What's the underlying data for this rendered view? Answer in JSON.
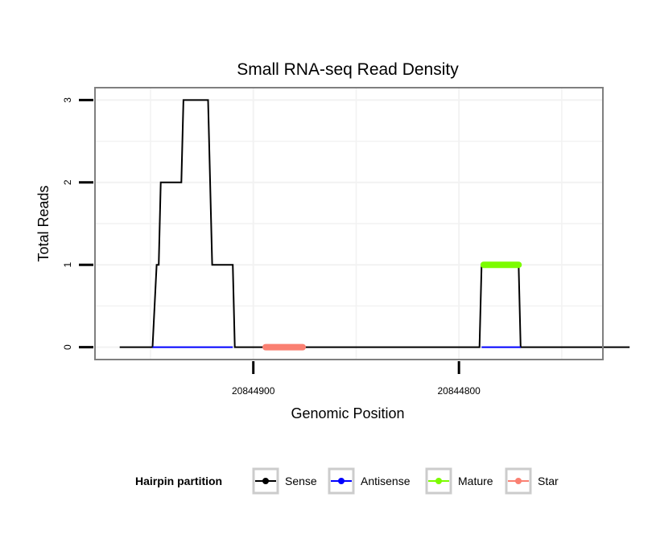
{
  "chart_data": {
    "type": "line",
    "title": "Small RNA-seq Read Density",
    "xlabel": "Genomic Position",
    "ylabel": "Total Reads",
    "xlim": [
      20844977,
      20844730
    ],
    "ylim": [
      -0.15,
      3.15
    ],
    "x_reversed": true,
    "grid": true,
    "x_ticks": [
      20844900,
      20844800
    ],
    "x_tick_labels": [
      "20844900",
      "20844800"
    ],
    "y_ticks": [
      0,
      1,
      2,
      3
    ],
    "y_tick_labels": [
      "0",
      "1",
      "2",
      "3"
    ],
    "series": [
      {
        "name": "Sense",
        "color": "#000000",
        "x": [
          20844965,
          20844949,
          20844947,
          20844946,
          20844945,
          20844935,
          20844934,
          20844932,
          20844923,
          20844922,
          20844920,
          20844911,
          20844910,
          20844909,
          20844790,
          20844789,
          20844788,
          20844771,
          20844770,
          20844769,
          20844717
        ],
        "y": [
          0,
          0,
          1,
          1,
          2,
          2,
          3,
          3,
          3,
          3,
          1,
          1,
          1,
          0,
          0,
          1,
          1,
          1,
          0,
          0,
          0
        ]
      },
      {
        "name": "Antisense",
        "color": "#0000ff",
        "segments": [
          {
            "x": [
              20844949,
              20844910
            ],
            "y": [
              0,
              0
            ]
          },
          {
            "x": [
              20844789,
              20844770
            ],
            "y": [
              0,
              0
            ]
          }
        ]
      },
      {
        "name": "Mature",
        "color": "#7cfc00",
        "segments": [
          {
            "x": [
              20844788,
              20844771
            ],
            "y": [
              1,
              1
            ]
          }
        ]
      },
      {
        "name": "Star",
        "color": "#fa8072",
        "segments": [
          {
            "x": [
              20844894,
              20844876
            ],
            "y": [
              0,
              0
            ]
          }
        ]
      }
    ],
    "legend": {
      "title": "Hairpin partition",
      "position": "bottom",
      "entries": [
        {
          "label": "Sense",
          "color": "#000000"
        },
        {
          "label": "Antisense",
          "color": "#0000ff"
        },
        {
          "label": "Mature",
          "color": "#7cfc00"
        },
        {
          "label": "Star",
          "color": "#fa8072"
        }
      ]
    }
  }
}
